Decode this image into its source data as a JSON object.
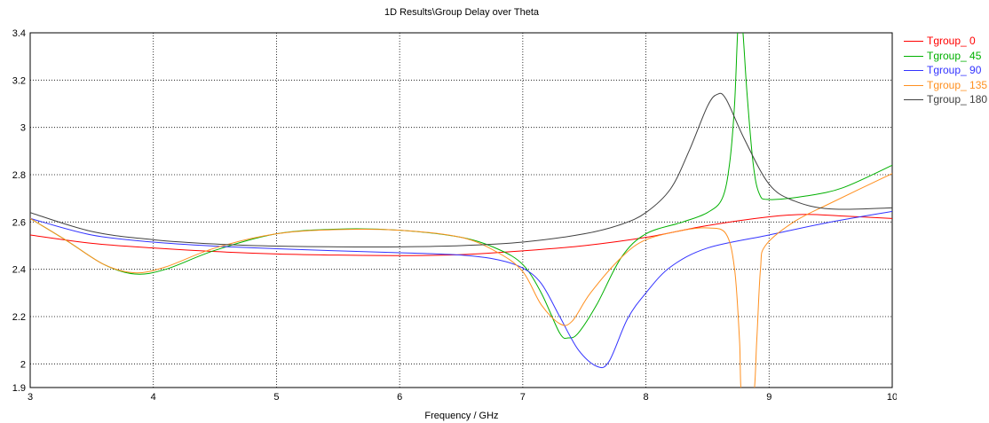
{
  "chart_data": {
    "type": "line",
    "title": "1D Results\\Group Delay over Theta",
    "xlabel": "Frequency / GHz",
    "ylabel": "",
    "xlim": [
      3,
      10
    ],
    "ylim": [
      1.9,
      3.4
    ],
    "x_ticks": [
      "3",
      "4",
      "5",
      "6",
      "7",
      "8",
      "9",
      "10"
    ],
    "y_ticks": [
      "1.9",
      "2",
      "2.2",
      "2.4",
      "2.6",
      "2.8",
      "3",
      "3.2",
      "3.4"
    ],
    "grid": true,
    "legend_position": "right",
    "series": [
      {
        "name": "Tgroup_ 0",
        "color": "#ff0000",
        "points": [
          [
            3,
            2.545
          ],
          [
            3.5,
            2.51
          ],
          [
            4,
            2.49
          ],
          [
            4.5,
            2.475
          ],
          [
            5,
            2.465
          ],
          [
            5.5,
            2.46
          ],
          [
            6,
            2.458
          ],
          [
            6.5,
            2.462
          ],
          [
            7,
            2.478
          ],
          [
            7.5,
            2.5
          ],
          [
            8,
            2.535
          ],
          [
            8.5,
            2.585
          ],
          [
            9,
            2.622
          ],
          [
            9.3,
            2.632
          ],
          [
            9.6,
            2.625
          ],
          [
            10,
            2.615
          ]
        ]
      },
      {
        "name": "Tgroup_ 45",
        "color": "#00b000",
        "points": [
          [
            3,
            2.615
          ],
          [
            3.3,
            2.52
          ],
          [
            3.6,
            2.42
          ],
          [
            3.85,
            2.38
          ],
          [
            4.1,
            2.4
          ],
          [
            4.5,
            2.48
          ],
          [
            5,
            2.55
          ],
          [
            5.5,
            2.57
          ],
          [
            6,
            2.565
          ],
          [
            6.5,
            2.535
          ],
          [
            6.8,
            2.485
          ],
          [
            7,
            2.42
          ],
          [
            7.15,
            2.3
          ],
          [
            7.3,
            2.13
          ],
          [
            7.37,
            2.11
          ],
          [
            7.45,
            2.13
          ],
          [
            7.6,
            2.25
          ],
          [
            7.8,
            2.45
          ],
          [
            8,
            2.55
          ],
          [
            8.3,
            2.6
          ],
          [
            8.5,
            2.64
          ],
          [
            8.62,
            2.7
          ],
          [
            8.68,
            2.85
          ],
          [
            8.72,
            3.1
          ],
          [
            8.75,
            3.45
          ],
          [
            8.78,
            3.45
          ],
          [
            8.82,
            3.15
          ],
          [
            8.87,
            2.85
          ],
          [
            8.92,
            2.72
          ],
          [
            9,
            2.695
          ],
          [
            9.3,
            2.71
          ],
          [
            9.6,
            2.745
          ],
          [
            10,
            2.84
          ]
        ]
      },
      {
        "name": "Tgroup_ 90",
        "color": "#3333ff",
        "points": [
          [
            3,
            2.615
          ],
          [
            3.5,
            2.545
          ],
          [
            4,
            2.515
          ],
          [
            4.5,
            2.498
          ],
          [
            5,
            2.487
          ],
          [
            5.5,
            2.478
          ],
          [
            6,
            2.47
          ],
          [
            6.5,
            2.46
          ],
          [
            6.8,
            2.44
          ],
          [
            7,
            2.405
          ],
          [
            7.15,
            2.34
          ],
          [
            7.3,
            2.2
          ],
          [
            7.45,
            2.06
          ],
          [
            7.6,
            1.99
          ],
          [
            7.7,
            2.01
          ],
          [
            7.85,
            2.19
          ],
          [
            8,
            2.3
          ],
          [
            8.2,
            2.41
          ],
          [
            8.5,
            2.49
          ],
          [
            9,
            2.545
          ],
          [
            9.5,
            2.6
          ],
          [
            10,
            2.645
          ]
        ]
      },
      {
        "name": "Tgroup_ 135",
        "color": "#ff9020",
        "points": [
          [
            3,
            2.615
          ],
          [
            3.3,
            2.52
          ],
          [
            3.6,
            2.42
          ],
          [
            3.85,
            2.385
          ],
          [
            4.1,
            2.41
          ],
          [
            4.5,
            2.49
          ],
          [
            5,
            2.55
          ],
          [
            5.5,
            2.568
          ],
          [
            6,
            2.565
          ],
          [
            6.5,
            2.535
          ],
          [
            6.8,
            2.47
          ],
          [
            7,
            2.39
          ],
          [
            7.15,
            2.25
          ],
          [
            7.3,
            2.17
          ],
          [
            7.4,
            2.18
          ],
          [
            7.55,
            2.3
          ],
          [
            7.8,
            2.45
          ],
          [
            8,
            2.525
          ],
          [
            8.3,
            2.565
          ],
          [
            8.5,
            2.575
          ],
          [
            8.65,
            2.55
          ],
          [
            8.72,
            2.4
          ],
          [
            8.76,
            2.1
          ],
          [
            8.78,
            1.85
          ],
          [
            8.87,
            1.85
          ],
          [
            8.9,
            2.1
          ],
          [
            8.93,
            2.4
          ],
          [
            8.97,
            2.5
          ],
          [
            9.2,
            2.6
          ],
          [
            9.5,
            2.68
          ],
          [
            10,
            2.805
          ]
        ]
      },
      {
        "name": "Tgroup_ 180",
        "color": "#404040",
        "points": [
          [
            3,
            2.64
          ],
          [
            3.5,
            2.56
          ],
          [
            4,
            2.525
          ],
          [
            4.5,
            2.507
          ],
          [
            5,
            2.498
          ],
          [
            5.5,
            2.495
          ],
          [
            6,
            2.495
          ],
          [
            6.5,
            2.5
          ],
          [
            7,
            2.515
          ],
          [
            7.5,
            2.55
          ],
          [
            7.8,
            2.59
          ],
          [
            8,
            2.64
          ],
          [
            8.2,
            2.74
          ],
          [
            8.35,
            2.9
          ],
          [
            8.5,
            3.09
          ],
          [
            8.58,
            3.14
          ],
          [
            8.65,
            3.12
          ],
          [
            8.8,
            2.95
          ],
          [
            9,
            2.76
          ],
          [
            9.2,
            2.69
          ],
          [
            9.5,
            2.655
          ],
          [
            10,
            2.66
          ]
        ]
      }
    ]
  }
}
